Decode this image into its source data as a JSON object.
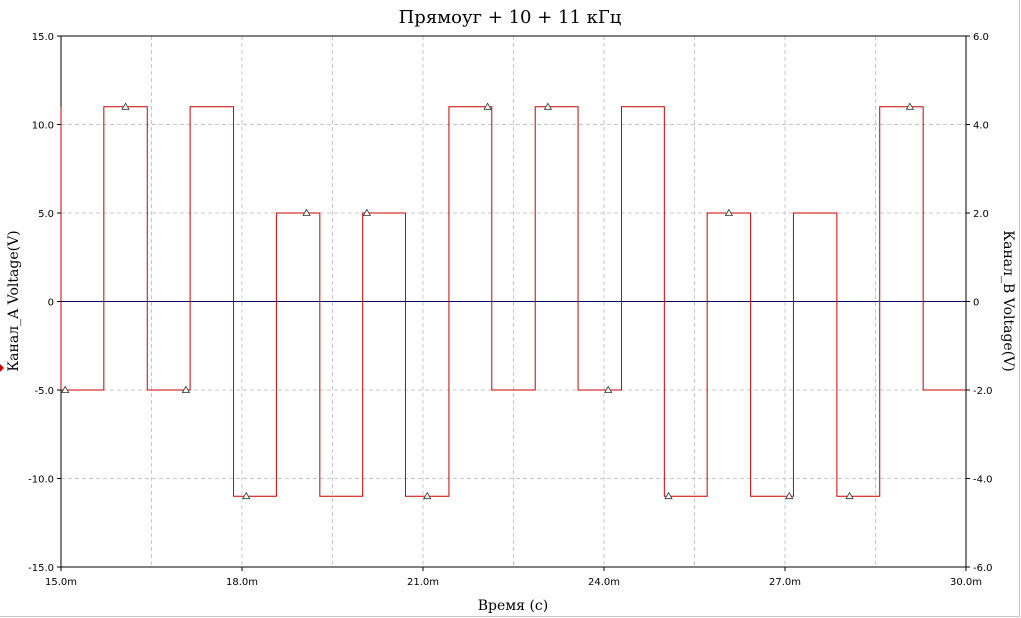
{
  "chart_data": {
    "type": "line",
    "title": "Прямоуг + 10 + 11 кГц",
    "xlabel": "Время (с)",
    "ylabel_left": "Канал_A Voltage(V)",
    "ylabel_right": "Канал_B Voltage(V)",
    "xlim": [
      0.015,
      0.03
    ],
    "ylim_left": [
      -15,
      15
    ],
    "ylim_right": [
      -6,
      6
    ],
    "grid": true,
    "x_ticks": [
      {
        "value": 0.015,
        "label": "15.0m"
      },
      {
        "value": 0.018,
        "label": "18.0m"
      },
      {
        "value": 0.021,
        "label": "21.0m"
      },
      {
        "value": 0.024,
        "label": "24.0m"
      },
      {
        "value": 0.027,
        "label": "27.0m"
      },
      {
        "value": 0.03,
        "label": "30.0m"
      }
    ],
    "x_minor_grid": [
      0.0165,
      0.0195,
      0.0225,
      0.0255,
      0.0285
    ],
    "y_ticks_left": [
      {
        "value": 15,
        "label": "15.0"
      },
      {
        "value": 10,
        "label": "10.0"
      },
      {
        "value": 5,
        "label": "5.0"
      },
      {
        "value": 0,
        "label": "0"
      },
      {
        "value": -5,
        "label": "-5.0"
      },
      {
        "value": -10,
        "label": "-10.0"
      },
      {
        "value": -15,
        "label": "-15.0"
      }
    ],
    "y_ticks_right": [
      {
        "value": 6,
        "label": "6.0"
      },
      {
        "value": 4,
        "label": "4.0"
      },
      {
        "value": 2,
        "label": "2.0"
      },
      {
        "value": 0,
        "label": "0"
      },
      {
        "value": -2,
        "label": "-2.0"
      },
      {
        "value": -4,
        "label": "-4.0"
      },
      {
        "value": -6,
        "label": "-6.0"
      }
    ],
    "series": [
      {
        "color": "#cc0000",
        "axis": "left",
        "step_x": [
          0.015,
          0.01571,
          0.01643,
          0.01714,
          0.01786,
          0.01857,
          0.01929,
          0.02,
          0.02071,
          0.02143,
          0.02214,
          0.02286,
          0.02357,
          0.02429,
          0.025,
          0.02571,
          0.02643,
          0.02714,
          0.02786,
          0.02857,
          0.02929,
          0.03
        ],
        "values": [
          -5,
          11,
          -5,
          11,
          -11,
          5,
          -11,
          5,
          -11,
          11,
          -5,
          11,
          -5,
          11,
          -11,
          5,
          -11,
          5,
          -11,
          11,
          -5
        ],
        "initial_value": 11,
        "markers": [
          {
            "x": 0.01507,
            "y": -5
          },
          {
            "x": 0.01607,
            "y": 11
          },
          {
            "x": 0.01707,
            "y": -5
          },
          {
            "x": 0.01807,
            "y": -11
          },
          {
            "x": 0.01907,
            "y": 5
          },
          {
            "x": 0.02007,
            "y": 5
          },
          {
            "x": 0.02107,
            "y": -11
          },
          {
            "x": 0.02207,
            "y": 11
          },
          {
            "x": 0.02307,
            "y": 11
          },
          {
            "x": 0.02407,
            "y": -5
          },
          {
            "x": 0.02507,
            "y": -11
          },
          {
            "x": 0.02607,
            "y": 5
          },
          {
            "x": 0.02707,
            "y": -11
          },
          {
            "x": 0.02807,
            "y": -11
          },
          {
            "x": 0.02907,
            "y": 11
          }
        ]
      },
      {
        "color": "#000066",
        "axis": "right",
        "x": [
          0.015,
          0.03
        ],
        "values": [
          0,
          0
        ]
      }
    ]
  }
}
